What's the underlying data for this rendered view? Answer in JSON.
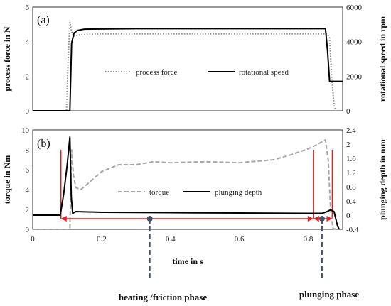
{
  "chart_data": [
    {
      "panel_label": "(a)",
      "type": "line",
      "xlim": [
        0,
        0.9
      ],
      "ylim_left": [
        0,
        6
      ],
      "ylim_right": [
        0,
        6000
      ],
      "ylabel_left": "process force in N",
      "ylabel_right": "rotational speed in rpm",
      "yticks_left": [
        "0",
        "2",
        "4",
        "6"
      ],
      "yticks_right": [
        "0",
        "2000",
        "4000",
        "6000"
      ],
      "legend_placement": "center-right",
      "series": [
        {
          "name": "process force",
          "axis": "left",
          "style": "dotted",
          "color": "#8c8c8c",
          "x": [
            0,
            0.098,
            0.103,
            0.108,
            0.113,
            0.118,
            0.125,
            0.14,
            0.2,
            0.4,
            0.6,
            0.8,
            0.855,
            0.862,
            0.868,
            0.875,
            0.88
          ],
          "y": [
            0,
            0,
            3.0,
            5.1,
            4.6,
            4.3,
            4.35,
            4.4,
            4.45,
            4.45,
            4.45,
            4.45,
            4.45,
            4.2,
            2.0,
            0.3,
            0
          ]
        },
        {
          "name": "rotational speed",
          "axis": "right",
          "style": "solid",
          "color": "#000000",
          "x": [
            0,
            0.108,
            0.113,
            0.12,
            0.13,
            0.15,
            0.3,
            0.5,
            0.7,
            0.85,
            0.856,
            0.862,
            0.9
          ],
          "y": [
            0,
            0,
            3900,
            4500,
            4650,
            4720,
            4750,
            4750,
            4750,
            4750,
            3500,
            1700,
            1700
          ]
        }
      ]
    },
    {
      "panel_label": "(b)",
      "type": "line",
      "xlabel": "time in s",
      "xlim": [
        0,
        0.9
      ],
      "xticks": [
        "0",
        "0.2",
        "0.4",
        "0.6",
        "0.8"
      ],
      "ylim_left": [
        0,
        10
      ],
      "ylim_right": [
        -0.4,
        2.4
      ],
      "ylabel_left": "torque in Nm",
      "ylabel_right": "plunging depth in mm",
      "yticks_left": [
        "0",
        "2",
        "4",
        "6",
        "8",
        "10"
      ],
      "yticks_right": [
        "-0.4",
        "0",
        "0.4",
        "0.8",
        "1.2",
        "1.6",
        "2",
        "2.4"
      ],
      "legend_placement": "center",
      "series": [
        {
          "name": "torque",
          "axis": "left",
          "style": "dashed",
          "color": "#a6a6a6",
          "x": [
            0,
            0.108,
            0.113,
            0.118,
            0.125,
            0.14,
            0.16,
            0.2,
            0.25,
            0.3,
            0.35,
            0.4,
            0.5,
            0.6,
            0.7,
            0.75,
            0.8,
            0.83,
            0.85,
            0.858,
            0.865,
            0.872,
            0.88
          ],
          "y": [
            0,
            0,
            8.0,
            5.5,
            4.2,
            4.0,
            4.6,
            5.8,
            6.5,
            6.5,
            6.8,
            6.7,
            6.8,
            6.7,
            7.0,
            7.5,
            8.1,
            8.6,
            9.0,
            7.0,
            2.0,
            0.1,
            0
          ]
        },
        {
          "name": "plunging depth",
          "axis": "right",
          "style": "solid",
          "color": "#000000",
          "x": [
            0,
            0.08,
            0.09,
            0.1,
            0.108,
            0.112,
            0.116,
            0.125,
            0.2,
            0.4,
            0.6,
            0.8,
            0.84,
            0.855,
            0.865,
            0.875,
            0.885,
            0.89
          ],
          "y": [
            0.0,
            0.0,
            0.6,
            1.4,
            2.2,
            0.5,
            0.05,
            0.1,
            0.08,
            0.07,
            0.06,
            0.05,
            0.05,
            0.1,
            0.15,
            0.1,
            -0.3,
            -0.4
          ]
        }
      ],
      "annotations": [
        {
          "type": "vertical-line",
          "x": 0.082,
          "color": "#e02020"
        },
        {
          "type": "vertical-line",
          "x": 0.815,
          "color": "#e02020"
        },
        {
          "type": "vertical-line",
          "x": 0.87,
          "color": "#e02020"
        },
        {
          "type": "double-arrow",
          "x_start": 0.082,
          "x_end": 0.815,
          "y": -0.1,
          "marker_x": 0.34,
          "label": "heating /friction phase"
        },
        {
          "type": "double-arrow",
          "x_start": 0.815,
          "x_end": 0.87,
          "y": -0.1,
          "marker_x": 0.84,
          "label": "plunging phase"
        }
      ]
    }
  ],
  "colors": {
    "marker": "#44546a",
    "annotation_line": "#e02020",
    "leader_line": "#44546a"
  }
}
